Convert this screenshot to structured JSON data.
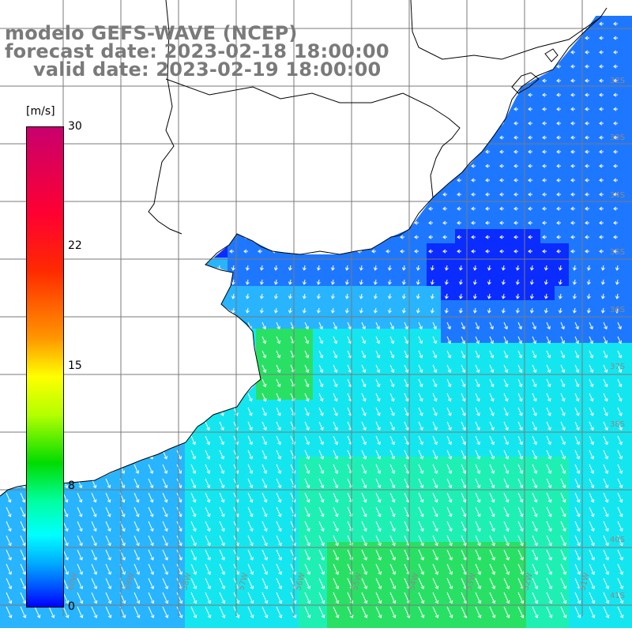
{
  "title": {
    "line1": "modelo GEFS-WAVE (NCEP)",
    "line2": "forecast date: 2023-02-18 18:00:00",
    "line3": "valid date: 2023-02-19 18:00:00"
  },
  "colorbar": {
    "unit": "[m/s]",
    "ticks": [
      "30",
      "22",
      "15",
      "8",
      "0"
    ],
    "range": [
      0,
      30
    ],
    "colors": [
      "#0000ff",
      "#00aaff",
      "#00ffff",
      "#00dc00",
      "#ffff00",
      "#ff9600",
      "#ff0032",
      "#c8006e"
    ]
  },
  "map": {
    "lat_labels": [
      "32S",
      "33S",
      "34S",
      "35S",
      "36S",
      "37S",
      "38S",
      "40S",
      "41S"
    ],
    "lon_labels": [
      "60W",
      "59W",
      "58W",
      "57W",
      "56W",
      "55W",
      "54W",
      "53W",
      "52W",
      "51W"
    ],
    "field_colors": {
      "deep_blue": "#0a2cff",
      "blue": "#1e78ff",
      "light_blue": "#28b4ff",
      "cyan": "#14e6f0",
      "aqua_green": "#1ef0b4",
      "green": "#28e164"
    },
    "land_color": "#ffffff",
    "coast_color": "#000000",
    "grid_color": "#7a7a7a",
    "arrow_color": "#ffffff"
  }
}
